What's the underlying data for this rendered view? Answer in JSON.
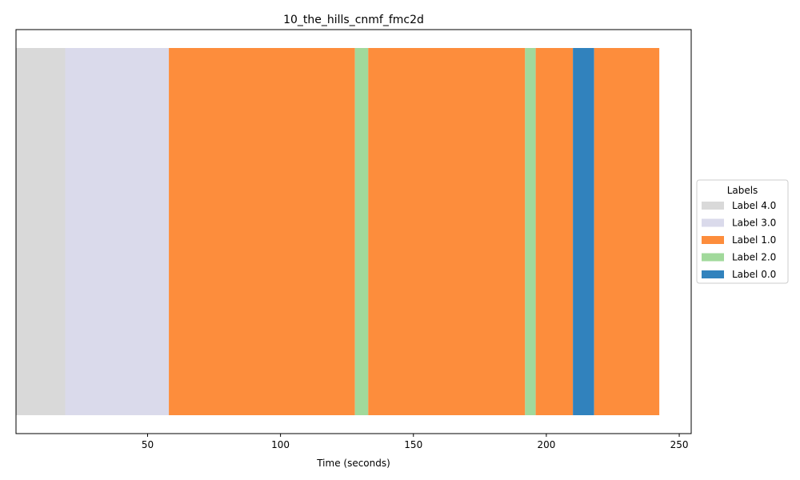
{
  "chart_data": {
    "type": "bar",
    "orientation": "horizontal-timeline",
    "title": "10_the_hills_cnmf_fmc2d",
    "xlabel": "Time (seconds)",
    "ylabel": "",
    "xlim": [
      0.5,
      254.5
    ],
    "xticks": [
      50,
      100,
      150,
      200,
      250
    ],
    "y_ticks_visible": false,
    "grid": false,
    "legend": {
      "title": "Labels",
      "placement": "center-right outside",
      "entries": [
        {
          "label": "Label 4.0",
          "color": "#d9d9d9"
        },
        {
          "label": "Label 3.0",
          "color": "#dadaeb"
        },
        {
          "label": "Label 1.0",
          "color": "#fd8d3c"
        },
        {
          "label": "Label 2.0",
          "color": "#a1d99b"
        },
        {
          "label": "Label 0.0",
          "color": "#3182bd"
        }
      ]
    },
    "segments": [
      {
        "label": "Label 4.0",
        "start": 0.5,
        "end": 19.0
      },
      {
        "label": "Label 3.0",
        "start": 19.0,
        "end": 58.0
      },
      {
        "label": "Label 1.0",
        "start": 58.0,
        "end": 128.0
      },
      {
        "label": "Label 2.0",
        "start": 128.0,
        "end": 133.0
      },
      {
        "label": "Label 1.0",
        "start": 133.0,
        "end": 192.0
      },
      {
        "label": "Label 2.0",
        "start": 192.0,
        "end": 196.0
      },
      {
        "label": "Label 1.0",
        "start": 196.0,
        "end": 210.0
      },
      {
        "label": "Label 0.0",
        "start": 210.0,
        "end": 218.0
      },
      {
        "label": "Label 1.0",
        "start": 218.0,
        "end": 242.5
      }
    ]
  }
}
